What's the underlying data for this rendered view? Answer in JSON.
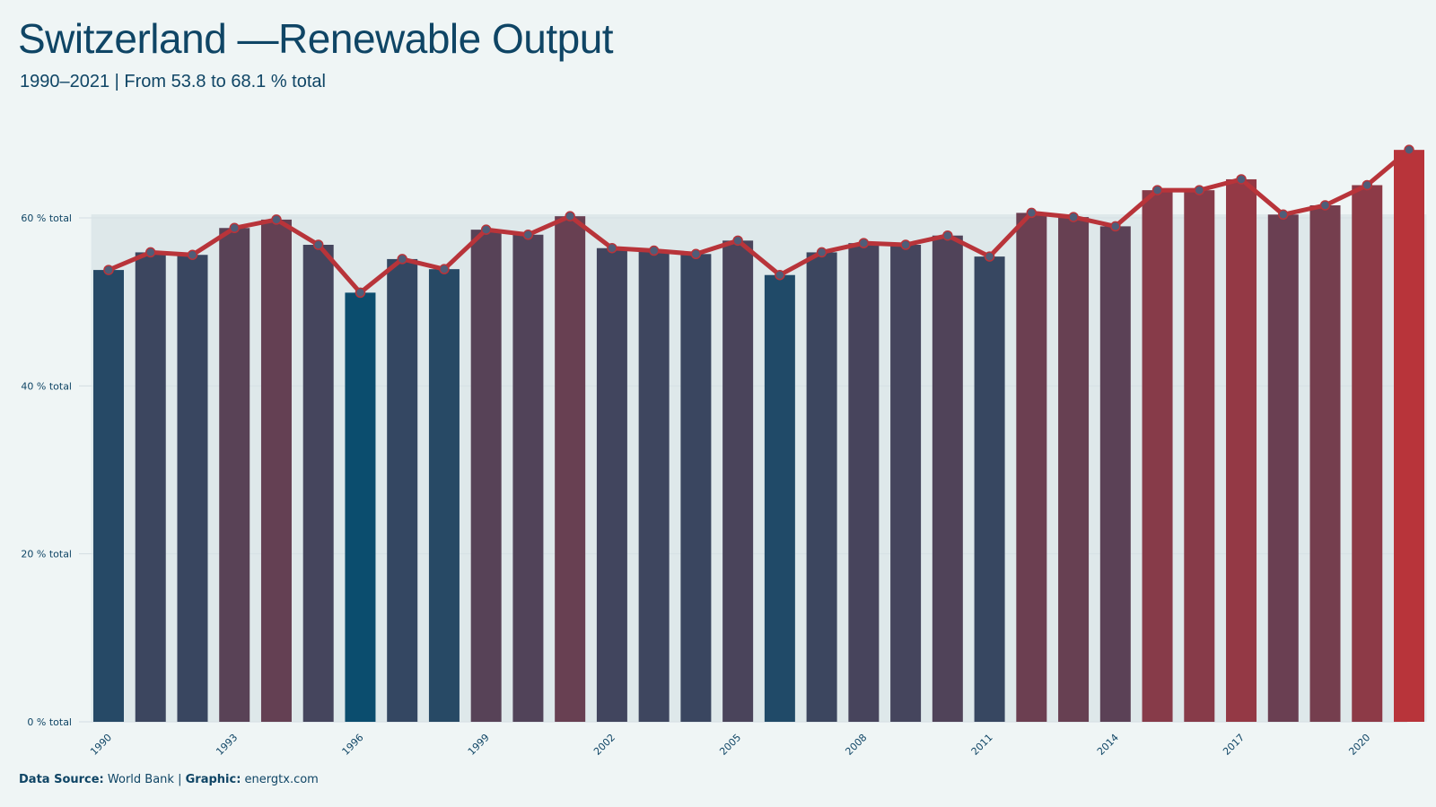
{
  "header": {
    "title": "Switzerland —Renewable Output",
    "subtitle": "1990–2021 | From 53.8 to 68.1 % total"
  },
  "footer": {
    "source_label": "Data Source:",
    "source_value": "World Bank",
    "separator": "|",
    "graphic_label": "Graphic:",
    "graphic_value": "energtx.com"
  },
  "colors": {
    "background": "#eff5f5",
    "text": "#0f4565",
    "low": "#0b4d6e",
    "high": "#b8343a",
    "line": "#b8343a",
    "marker_fill": "#4f5d78",
    "grid": "#d3dde2",
    "band": "#d7e2e6"
  },
  "chart_data": {
    "type": "bar",
    "x": [
      1990,
      1991,
      1992,
      1993,
      1994,
      1995,
      1996,
      1997,
      1998,
      1999,
      2000,
      2001,
      2002,
      2003,
      2004,
      2005,
      2006,
      2007,
      2008,
      2009,
      2010,
      2011,
      2012,
      2013,
      2014,
      2015,
      2016,
      2017,
      2018,
      2019,
      2020,
      2021
    ],
    "values": [
      53.8,
      55.9,
      55.6,
      58.8,
      59.8,
      56.8,
      51.1,
      55.1,
      53.9,
      58.6,
      58.0,
      60.2,
      56.4,
      56.1,
      55.7,
      57.3,
      53.2,
      55.9,
      57.0,
      56.8,
      57.9,
      55.4,
      60.6,
      60.1,
      59.0,
      63.3,
      63.3,
      64.6,
      60.4,
      61.5,
      63.9,
      68.1
    ],
    "series": [
      {
        "values": [
          53.8,
          55.9,
          55.6,
          58.8,
          59.8,
          56.8,
          51.1,
          55.1,
          53.9,
          58.6,
          58.0,
          60.2,
          56.4,
          56.1,
          55.7,
          57.3,
          53.2,
          55.9,
          57.0,
          56.8,
          57.9,
          55.4,
          60.6,
          60.1,
          59.0,
          63.3,
          63.3,
          64.6,
          60.4,
          61.5,
          63.9,
          68.1
        ]
      }
    ],
    "x_tick_labels": [
      "1990",
      "1993",
      "1996",
      "1999",
      "2002",
      "2005",
      "2008",
      "2011",
      "2014",
      "2017",
      "2020"
    ],
    "y_ticks": [
      0,
      20,
      40,
      60
    ],
    "y_tick_labels": [
      "0 % total",
      "20 % total",
      "40 % total",
      "60 % total"
    ],
    "ylim": [
      0,
      71
    ],
    "overlay": "line with markers",
    "grid": "horizontal",
    "legend": "none"
  }
}
